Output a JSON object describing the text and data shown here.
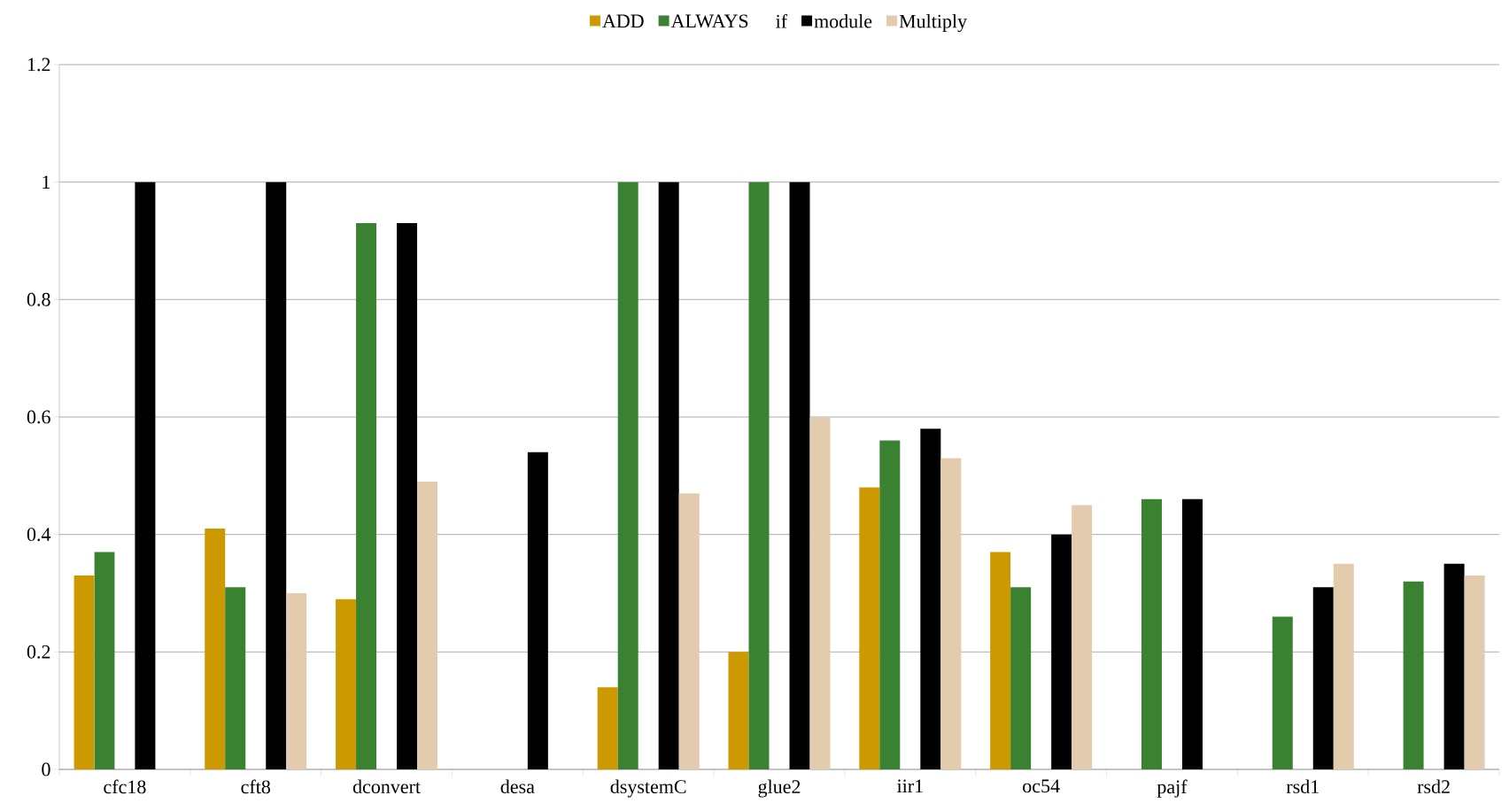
{
  "chart_data": {
    "type": "bar",
    "categories": [
      "cfc18",
      "cft8",
      "dconvert",
      "desa",
      "dsystemC",
      "glue2",
      "iir1",
      "oc54",
      "pajf",
      "rsd1",
      "rsd2"
    ],
    "series": [
      {
        "name": "ADD",
        "color": "#cc9900",
        "values": [
          0.33,
          0.41,
          0.29,
          null,
          0.14,
          0.2,
          0.48,
          0.37,
          null,
          null,
          null
        ]
      },
      {
        "name": "ALWAYS",
        "color": "#3a8232",
        "values": [
          0.37,
          0.31,
          0.93,
          null,
          1,
          1,
          0.56,
          0.31,
          0.46,
          0.26,
          0.32
        ]
      },
      {
        "name": "if",
        "values": [
          null,
          null,
          null,
          null,
          null,
          null,
          null,
          null,
          null,
          null,
          null
        ]
      },
      {
        "name": "module",
        "color": "#000000",
        "values": [
          1,
          1,
          0.93,
          0.54,
          1,
          1,
          0.58,
          0.4,
          0.46,
          0.31,
          0.35
        ]
      },
      {
        "name": "Multiply",
        "color": "#e3cbad",
        "values": [
          null,
          0.3,
          0.49,
          null,
          0.47,
          0.6,
          0.53,
          0.45,
          null,
          0.35,
          0.33
        ]
      }
    ],
    "ylim": [
      0,
      1.2
    ],
    "yticks": [
      0,
      0.2,
      0.4,
      0.6,
      0.8,
      1,
      1.2
    ],
    "grid": "y",
    "legend": "top"
  }
}
